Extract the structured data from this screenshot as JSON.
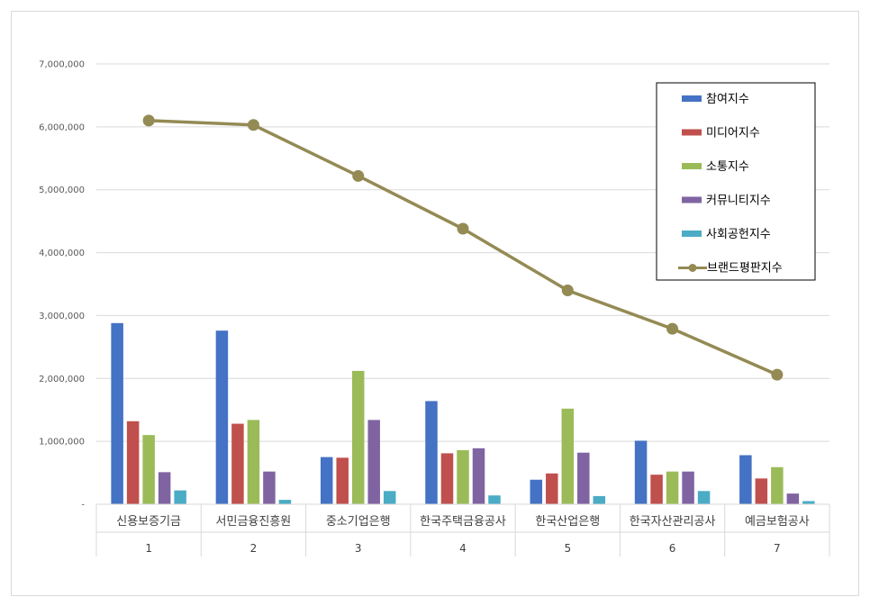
{
  "chart_data": {
    "type": "bar",
    "categories": [
      "신용보증기금",
      "서민금융진흥원",
      "중소기업은행",
      "한국주택금융공사",
      "한국산업은행",
      "한국자산관리공사",
      "예금보험공사"
    ],
    "rank_labels": [
      "1",
      "2",
      "3",
      "4",
      "5",
      "6",
      "7"
    ],
    "ylim": [
      0,
      7000000
    ],
    "yticks": [
      0,
      1000000,
      2000000,
      3000000,
      4000000,
      5000000,
      6000000,
      7000000
    ],
    "ytick_labels": [
      "-",
      "1,000,000",
      "2,000,000",
      "3,000,000",
      "4,000,000",
      "5,000,000",
      "6,000,000",
      "7,000,000"
    ],
    "grid": true,
    "legend_position": "top-right",
    "series": [
      {
        "name": "참여지수",
        "type": "bar",
        "color": "#4472C4",
        "values": [
          2880000,
          2760000,
          750000,
          1640000,
          390000,
          1010000,
          780000
        ]
      },
      {
        "name": "미디어지수",
        "type": "bar",
        "color": "#C0504D",
        "values": [
          1320000,
          1280000,
          740000,
          810000,
          490000,
          470000,
          410000
        ]
      },
      {
        "name": "소통지수",
        "type": "bar",
        "color": "#9BBB59",
        "values": [
          1100000,
          1340000,
          2120000,
          860000,
          1520000,
          520000,
          590000
        ]
      },
      {
        "name": "커뮤니티지수",
        "type": "bar",
        "color": "#8064A2",
        "values": [
          510000,
          520000,
          1340000,
          890000,
          820000,
          520000,
          170000
        ]
      },
      {
        "name": "사회공헌지수",
        "type": "bar",
        "color": "#4BACC6",
        "values": [
          220000,
          70000,
          210000,
          140000,
          130000,
          210000,
          50000
        ]
      },
      {
        "name": "브랜드평판지수",
        "type": "line",
        "color": "#948A54",
        "values": [
          6100000,
          6030000,
          5220000,
          4380000,
          3400000,
          2790000,
          2060000
        ]
      }
    ]
  }
}
